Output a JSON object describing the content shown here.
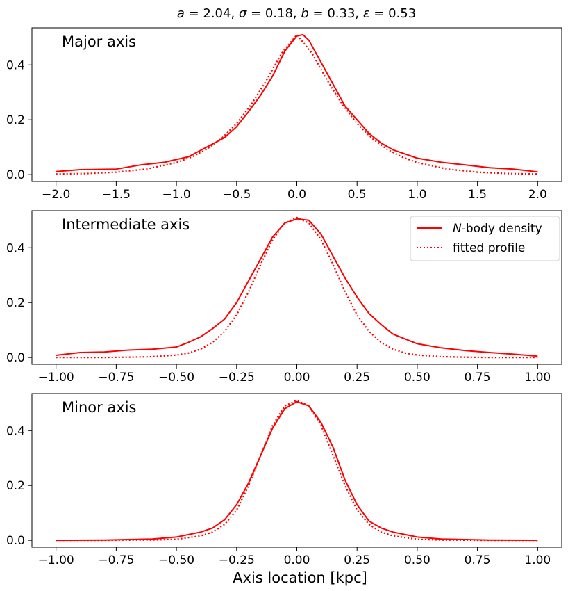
{
  "figure": {
    "title": "a = 2.04, σ = 0.18, b = 0.33, ε = 0.53",
    "title_parts": [
      {
        "t": "a",
        "i": true
      },
      {
        "t": " = 2.04, ",
        "i": false
      },
      {
        "t": "σ",
        "i": true
      },
      {
        "t": " = 0.18, ",
        "i": false
      },
      {
        "t": "b",
        "i": true
      },
      {
        "t": " = 0.33, ",
        "i": false
      },
      {
        "t": "ε",
        "i": true
      },
      {
        "t": " = 0.53",
        "i": false
      }
    ],
    "xlabel": "Axis location [kpc]",
    "line_color": "#ff0000",
    "legend": {
      "entries": [
        {
          "style": "solid",
          "label": "N-body density",
          "parts": [
            {
              "t": "N",
              "i": true
            },
            {
              "t": "-body density",
              "i": false
            }
          ]
        },
        {
          "style": "dotted",
          "label": "fitted profile",
          "parts": [
            {
              "t": "fitted profile",
              "i": false
            }
          ]
        }
      ]
    }
  },
  "chart_data": [
    {
      "type": "line",
      "panel_label": "Major axis",
      "xlim": [
        -2.2,
        2.2
      ],
      "ylim": [
        -0.025,
        0.535
      ],
      "xticks": [
        -2.0,
        -1.5,
        -1.0,
        -0.5,
        0.0,
        0.5,
        1.0,
        1.5,
        2.0
      ],
      "xtick_labels": [
        "−2.0",
        "−1.5",
        "−1.0",
        "−0.5",
        "0.0",
        "0.5",
        "1.0",
        "1.5",
        "2.0"
      ],
      "yticks": [
        0.0,
        0.2,
        0.4
      ],
      "ytick_labels": [
        "0.0",
        "0.2",
        "0.4"
      ],
      "series": [
        {
          "name": "N-body density",
          "style": "solid",
          "x": [
            -2.0,
            -1.8,
            -1.5,
            -1.3,
            -1.1,
            -1.0,
            -0.9,
            -0.75,
            -0.6,
            -0.5,
            -0.4,
            -0.3,
            -0.2,
            -0.1,
            0.0,
            0.05,
            0.1,
            0.2,
            0.3,
            0.4,
            0.5,
            0.6,
            0.7,
            0.8,
            1.0,
            1.2,
            1.4,
            1.6,
            1.8,
            2.0
          ],
          "y": [
            0.011,
            0.018,
            0.02,
            0.035,
            0.045,
            0.055,
            0.065,
            0.1,
            0.135,
            0.175,
            0.23,
            0.29,
            0.36,
            0.45,
            0.505,
            0.51,
            0.49,
            0.41,
            0.33,
            0.25,
            0.2,
            0.15,
            0.115,
            0.09,
            0.06,
            0.045,
            0.035,
            0.025,
            0.02,
            0.01
          ]
        },
        {
          "name": "fitted profile",
          "style": "dotted",
          "x": [
            -2.0,
            -1.75,
            -1.5,
            -1.25,
            -1.0,
            -0.875,
            -0.75,
            -0.625,
            -0.5,
            -0.375,
            -0.25,
            -0.125,
            0.0,
            0.125,
            0.25,
            0.375,
            0.5,
            0.625,
            0.75,
            0.875,
            1.0,
            1.25,
            1.5,
            1.75,
            2.0
          ],
          "y": [
            0.002,
            0.004,
            0.009,
            0.02,
            0.044,
            0.064,
            0.092,
            0.132,
            0.186,
            0.258,
            0.345,
            0.443,
            0.51,
            0.443,
            0.345,
            0.258,
            0.186,
            0.132,
            0.092,
            0.064,
            0.044,
            0.02,
            0.009,
            0.004,
            0.002
          ]
        }
      ]
    },
    {
      "type": "line",
      "panel_label": "Intermediate axis",
      "xlim": [
        -1.1,
        1.1
      ],
      "ylim": [
        -0.025,
        0.535
      ],
      "xticks": [
        -1.0,
        -0.75,
        -0.5,
        -0.25,
        0.0,
        0.25,
        0.5,
        0.75,
        1.0
      ],
      "xtick_labels": [
        "−1.00",
        "−0.75",
        "−0.50",
        "−0.25",
        "0.00",
        "0.25",
        "0.50",
        "0.75",
        "1.00"
      ],
      "yticks": [
        0.0,
        0.2,
        0.4
      ],
      "ytick_labels": [
        "0.0",
        "0.2",
        "0.4"
      ],
      "series": [
        {
          "name": "N-body density",
          "style": "solid",
          "x": [
            -1.0,
            -0.9,
            -0.8,
            -0.7,
            -0.6,
            -0.5,
            -0.45,
            -0.4,
            -0.35,
            -0.3,
            -0.25,
            -0.2,
            -0.15,
            -0.1,
            -0.05,
            0.0,
            0.05,
            0.1,
            0.15,
            0.2,
            0.25,
            0.3,
            0.35,
            0.4,
            0.5,
            0.6,
            0.7,
            0.8,
            0.9,
            1.0
          ],
          "y": [
            0.008,
            0.018,
            0.02,
            0.027,
            0.03,
            0.038,
            0.055,
            0.075,
            0.105,
            0.14,
            0.2,
            0.28,
            0.36,
            0.44,
            0.49,
            0.505,
            0.5,
            0.45,
            0.37,
            0.29,
            0.22,
            0.16,
            0.12,
            0.085,
            0.05,
            0.035,
            0.025,
            0.018,
            0.012,
            0.005
          ]
        },
        {
          "name": "fitted profile",
          "style": "dotted",
          "x": [
            -1.0,
            -0.9,
            -0.8,
            -0.7,
            -0.6,
            -0.5,
            -0.45,
            -0.4,
            -0.35,
            -0.3,
            -0.25,
            -0.2,
            -0.15,
            -0.1,
            -0.05,
            0.0,
            0.05,
            0.1,
            0.15,
            0.2,
            0.25,
            0.3,
            0.35,
            0.4,
            0.45,
            0.5,
            0.6,
            0.7,
            0.8,
            0.9,
            1.0
          ],
          "y": [
            0.0,
            0.0,
            0.0,
            0.001,
            0.003,
            0.009,
            0.016,
            0.03,
            0.055,
            0.095,
            0.155,
            0.24,
            0.34,
            0.43,
            0.49,
            0.51,
            0.49,
            0.43,
            0.34,
            0.24,
            0.155,
            0.095,
            0.055,
            0.03,
            0.016,
            0.009,
            0.003,
            0.001,
            0.0,
            0.0,
            0.0
          ]
        }
      ]
    },
    {
      "type": "line",
      "panel_label": "Minor axis",
      "xlim": [
        -1.1,
        1.1
      ],
      "ylim": [
        -0.025,
        0.535
      ],
      "xticks": [
        -1.0,
        -0.75,
        -0.5,
        -0.25,
        0.0,
        0.25,
        0.5,
        0.75,
        1.0
      ],
      "xtick_labels": [
        "−1.00",
        "−0.75",
        "−0.50",
        "−0.25",
        "0.00",
        "0.25",
        "0.50",
        "0.75",
        "1.00"
      ],
      "yticks": [
        0.0,
        0.2,
        0.4
      ],
      "ytick_labels": [
        "0.0",
        "0.2",
        "0.4"
      ],
      "series": [
        {
          "name": "N-body density",
          "style": "solid",
          "x": [
            -1.0,
            -0.8,
            -0.6,
            -0.5,
            -0.4,
            -0.35,
            -0.3,
            -0.25,
            -0.2,
            -0.15,
            -0.1,
            -0.05,
            0.0,
            0.05,
            0.1,
            0.15,
            0.2,
            0.25,
            0.3,
            0.35,
            0.4,
            0.5,
            0.6,
            0.8,
            1.0
          ],
          "y": [
            0.0,
            0.001,
            0.005,
            0.012,
            0.03,
            0.045,
            0.075,
            0.13,
            0.21,
            0.31,
            0.41,
            0.48,
            0.505,
            0.49,
            0.43,
            0.34,
            0.22,
            0.13,
            0.07,
            0.045,
            0.03,
            0.012,
            0.005,
            0.001,
            0.0
          ]
        },
        {
          "name": "fitted profile",
          "style": "dotted",
          "x": [
            -1.0,
            -0.8,
            -0.6,
            -0.5,
            -0.4,
            -0.35,
            -0.3,
            -0.25,
            -0.2,
            -0.15,
            -0.1,
            -0.05,
            0.0,
            0.05,
            0.1,
            0.15,
            0.2,
            0.25,
            0.3,
            0.35,
            0.4,
            0.5,
            0.6,
            0.8,
            1.0
          ],
          "y": [
            0.0,
            0.0,
            0.001,
            0.004,
            0.016,
            0.03,
            0.058,
            0.11,
            0.2,
            0.31,
            0.42,
            0.49,
            0.51,
            0.49,
            0.42,
            0.31,
            0.2,
            0.11,
            0.058,
            0.03,
            0.016,
            0.004,
            0.001,
            0.0,
            0.0
          ]
        }
      ]
    }
  ]
}
